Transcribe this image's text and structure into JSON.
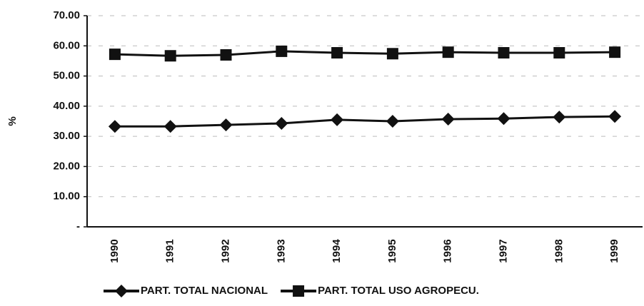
{
  "chart_data": {
    "type": "line",
    "y_label": "%",
    "categories": [
      "1990",
      "1991",
      "1992",
      "1993",
      "1994",
      "1995",
      "1996",
      "1997",
      "1998",
      "1999"
    ],
    "series": [
      {
        "name": "PART. TOTAL NACIONAL",
        "color": "#111111",
        "marker": "diamond",
        "values": [
          33.3,
          33.3,
          33.8,
          34.3,
          35.5,
          35.0,
          35.7,
          35.9,
          36.4,
          36.6
        ]
      },
      {
        "name": "PART. TOTAL USO AGROPECU.",
        "color": "#111111",
        "marker": "square",
        "values": [
          57.2,
          56.7,
          57.0,
          58.2,
          57.7,
          57.4,
          57.9,
          57.7,
          57.7,
          57.9
        ]
      }
    ],
    "ylim": [
      0,
      70
    ],
    "yticks": [
      {
        "value": 0,
        "label": "-"
      },
      {
        "value": 10,
        "label": "10.00"
      },
      {
        "value": 20,
        "label": "20.00"
      },
      {
        "value": 30,
        "label": "30.00"
      },
      {
        "value": 40,
        "label": "40.00"
      },
      {
        "value": 50,
        "label": "50.00"
      },
      {
        "value": 60,
        "label": "60.00"
      },
      {
        "value": 70,
        "label": "70.00"
      }
    ],
    "grid": true,
    "legend": "bottom"
  }
}
